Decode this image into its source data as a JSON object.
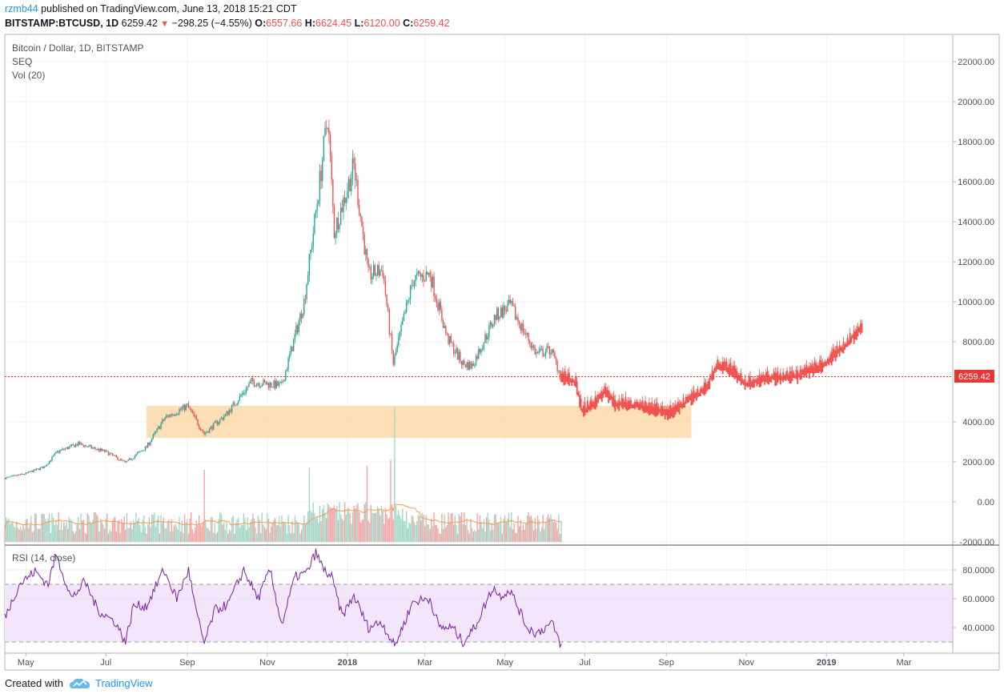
{
  "header": {
    "author": "rzmb44",
    "published_text": "published on TradingView.com, June 13, 2018 15:21 CDT",
    "symbol": "BITSTAMP:BTCUSD, 1D",
    "last": "6259.42",
    "change": "−298.25 (−4.55%)",
    "o_label": "O:",
    "o_value": "6557.66",
    "h_label": "H:",
    "h_value": "6624.45",
    "l_label": "L:",
    "l_value": "6120.00",
    "c_label": "C:",
    "c_value": "6259.42"
  },
  "legend": {
    "line1": "Bitcoin / Dollar, 1D, BITSTAMP",
    "line2": "SEQ",
    "line3": "Vol (20)",
    "rsi": "RSI (14, close)"
  },
  "price_label": "6259.42",
  "footer": {
    "created_with": "Created with",
    "brand": "TradingView",
    "logo_icon": "tradingview-cloud-icon"
  },
  "colors": {
    "up": "#26a69a",
    "down": "#ef5350",
    "up_vol": "#a5d6c8",
    "down_vol": "#f0a6a4",
    "zone": "#fcd9a8",
    "rsi_band": "#f3e5fc",
    "rsi_line": "#7b1fa2",
    "vol_ma": "#f59c4c",
    "price_line": "#e53935"
  },
  "chart_data": {
    "type": "candlestick",
    "y_ticks": [
      "22000.00",
      "20000.00",
      "18000.00",
      "16000.00",
      "14000.00",
      "12000.00",
      "10000.00",
      "8000.00",
      "4000.00",
      "2000.00",
      "0.00",
      "-2000.00"
    ],
    "ylim": [
      -2000,
      23500
    ],
    "x_ticks": [
      "May",
      "Jul",
      "Sep",
      "Nov",
      "2018",
      "Mar",
      "May",
      "Jul",
      "Sep",
      "Nov",
      "2019",
      "Mar"
    ],
    "price_keypoints": [
      [
        "2017-04-15",
        1180
      ],
      [
        "2017-05-01",
        1420
      ],
      [
        "2017-05-15",
        1750
      ],
      [
        "2017-05-25",
        2500
      ],
      [
        "2017-06-10",
        2900
      ],
      [
        "2017-07-01",
        2500
      ],
      [
        "2017-07-16",
        1950
      ],
      [
        "2017-08-01",
        2750
      ],
      [
        "2017-08-15",
        4200
      ],
      [
        "2017-09-01",
        4800
      ],
      [
        "2017-09-14",
        3400
      ],
      [
        "2017-10-01",
        4400
      ],
      [
        "2017-10-20",
        6000
      ],
      [
        "2017-11-12",
        5800
      ],
      [
        "2017-11-29",
        10000
      ],
      [
        "2017-12-10",
        15500
      ],
      [
        "2017-12-17",
        19300
      ],
      [
        "2017-12-22",
        13500
      ],
      [
        "2018-01-06",
        16800
      ],
      [
        "2018-01-17",
        11300
      ],
      [
        "2018-01-28",
        11600
      ],
      [
        "2018-02-05",
        6900
      ],
      [
        "2018-02-20",
        11100
      ],
      [
        "2018-03-05",
        11400
      ],
      [
        "2018-03-18",
        8200
      ],
      [
        "2018-03-30",
        6900
      ],
      [
        "2018-04-06",
        6800
      ],
      [
        "2018-04-24",
        9300
      ],
      [
        "2018-05-05",
        9800
      ],
      [
        "2018-05-25",
        7400
      ],
      [
        "2018-06-05",
        7600
      ],
      [
        "2018-06-13",
        6259
      ]
    ],
    "projection_keypoints": [
      [
        "2018-06-13",
        6250
      ],
      [
        "2018-06-24",
        5900
      ],
      [
        "2018-06-29",
        4500
      ],
      [
        "2018-07-08",
        4900
      ],
      [
        "2018-07-16",
        5500
      ],
      [
        "2018-07-24",
        4900
      ],
      [
        "2018-08-10",
        4800
      ],
      [
        "2018-08-28",
        4500
      ],
      [
        "2018-09-05",
        4400
      ],
      [
        "2018-09-20",
        5200
      ],
      [
        "2018-10-01",
        5600
      ],
      [
        "2018-10-10",
        6800
      ],
      [
        "2018-10-20",
        6600
      ],
      [
        "2018-11-01",
        5900
      ],
      [
        "2018-11-20",
        6200
      ],
      [
        "2018-12-10",
        6300
      ],
      [
        "2018-12-30",
        6800
      ],
      [
        "2019-01-15",
        7800
      ],
      [
        "2019-01-28",
        8700
      ]
    ],
    "volume": {
      "peaks": [
        [
          "2017-09-14",
          1600
        ],
        [
          "2017-12-03",
          1200
        ],
        [
          "2018-01-16",
          1300
        ],
        [
          "2018-02-06",
          4200
        ],
        [
          "2018-02-03",
          1600
        ]
      ]
    },
    "rsi": {
      "band": [
        30,
        70
      ],
      "ticks": [
        "80.0000",
        "60.0000",
        "40.0000"
      ],
      "keypoints": [
        [
          "2017-04-15",
          47
        ],
        [
          "2017-04-26",
          70
        ],
        [
          "2017-05-08",
          79
        ],
        [
          "2017-05-18",
          70
        ],
        [
          "2017-05-24",
          91
        ],
        [
          "2017-06-05",
          60
        ],
        [
          "2017-06-15",
          72
        ],
        [
          "2017-06-25",
          52
        ],
        [
          "2017-07-08",
          44
        ],
        [
          "2017-07-16",
          30
        ],
        [
          "2017-07-22",
          55
        ],
        [
          "2017-08-01",
          55
        ],
        [
          "2017-08-14",
          80
        ],
        [
          "2017-08-24",
          60
        ],
        [
          "2017-09-02",
          80
        ],
        [
          "2017-09-08",
          50
        ],
        [
          "2017-09-14",
          29
        ],
        [
          "2017-09-22",
          52
        ],
        [
          "2017-10-02",
          56
        ],
        [
          "2017-10-14",
          80
        ],
        [
          "2017-10-25",
          60
        ],
        [
          "2017-11-03",
          80
        ],
        [
          "2017-11-12",
          42
        ],
        [
          "2017-11-22",
          75
        ],
        [
          "2017-12-01",
          78
        ],
        [
          "2017-12-08",
          92
        ],
        [
          "2017-12-14",
          80
        ],
        [
          "2017-12-20",
          75
        ],
        [
          "2017-12-28",
          48
        ],
        [
          "2018-01-06",
          62
        ],
        [
          "2018-01-17",
          40
        ],
        [
          "2018-01-27",
          44
        ],
        [
          "2018-02-06",
          27
        ],
        [
          "2018-02-20",
          58
        ],
        [
          "2018-03-05",
          60
        ],
        [
          "2018-03-12",
          40
        ],
        [
          "2018-03-22",
          40
        ],
        [
          "2018-03-30",
          30
        ],
        [
          "2018-04-08",
          40
        ],
        [
          "2018-04-22",
          68
        ],
        [
          "2018-04-27",
          62
        ],
        [
          "2018-05-05",
          66
        ],
        [
          "2018-05-18",
          40
        ],
        [
          "2018-05-25",
          36
        ],
        [
          "2018-06-06",
          43
        ],
        [
          "2018-06-13",
          27
        ]
      ]
    }
  }
}
